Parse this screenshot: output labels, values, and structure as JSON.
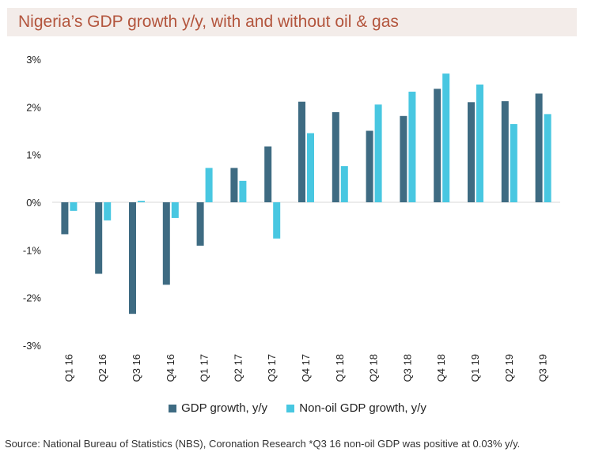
{
  "title": "Nigeria’s GDP growth y/y, with and without oil & gas",
  "source": "Source: National Bureau of Statistics (NBS), Coronation Research *Q3 16 non-oil GDP was positive at 0.03% y/y.",
  "colors": {
    "gdp": "#3e6b82",
    "nonoil": "#48c7e1",
    "title_bg": "#f3ece9",
    "title_fg": "#b3553d"
  },
  "chart_data": {
    "type": "bar",
    "categories": [
      "Q1 16",
      "Q2 16",
      "Q3 16",
      "Q4 16",
      "Q1 17",
      "Q2 17",
      "Q3 17",
      "Q4 17",
      "Q1 18",
      "Q2 18",
      "Q3 18",
      "Q4 18",
      "Q1 19",
      "Q2 19",
      "Q3 19"
    ],
    "series": [
      {
        "name": "GDP growth, y/y",
        "color": "#3e6b82",
        "values": [
          -0.67,
          -1.5,
          -2.34,
          -1.73,
          -0.91,
          0.72,
          1.17,
          2.11,
          1.89,
          1.5,
          1.81,
          2.38,
          2.1,
          2.12,
          2.28
        ]
      },
      {
        "name": "Non-oil GDP growth, y/y",
        "color": "#48c7e1",
        "values": [
          -0.18,
          -0.38,
          0.03,
          -0.33,
          0.72,
          0.45,
          -0.76,
          1.45,
          0.76,
          2.05,
          2.32,
          2.7,
          2.47,
          1.64,
          1.85
        ]
      }
    ],
    "ylim": [
      -3,
      3
    ],
    "yticks": [
      "3%",
      "2%",
      "1%",
      "0%",
      "-1%",
      "-2%",
      "-3%"
    ],
    "ytick_values": [
      3,
      2,
      1,
      0,
      -1,
      -2,
      -3
    ],
    "legend_position": "bottom",
    "grid": false
  }
}
